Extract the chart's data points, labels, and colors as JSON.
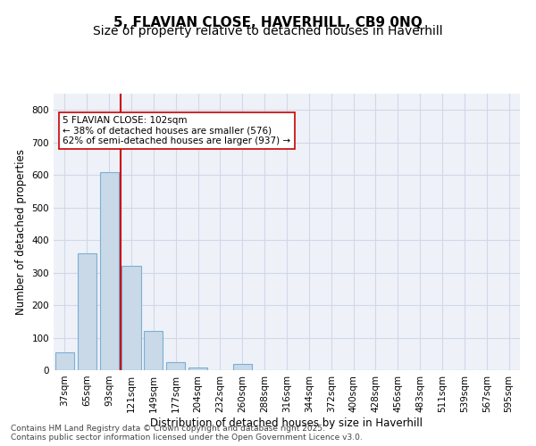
{
  "title_line1": "5, FLAVIAN CLOSE, HAVERHILL, CB9 0NQ",
  "title_line2": "Size of property relative to detached houses in Haverhill",
  "xlabel": "Distribution of detached houses by size in Haverhill",
  "ylabel": "Number of detached properties",
  "categories": [
    "37sqm",
    "65sqm",
    "93sqm",
    "121sqm",
    "149sqm",
    "177sqm",
    "204sqm",
    "232sqm",
    "260sqm",
    "288sqm",
    "316sqm",
    "344sqm",
    "372sqm",
    "400sqm",
    "428sqm",
    "456sqm",
    "483sqm",
    "511sqm",
    "539sqm",
    "567sqm",
    "595sqm"
  ],
  "values": [
    55,
    360,
    610,
    320,
    120,
    25,
    8,
    0,
    18,
    0,
    0,
    0,
    0,
    0,
    0,
    0,
    0,
    0,
    0,
    0,
    0
  ],
  "bar_color": "#c9d9e8",
  "bar_edge_color": "#7bafd4",
  "vline_x": 2,
  "vline_color": "#cc0000",
  "annotation_text": "5 FLAVIAN CLOSE: 102sqm\n← 38% of detached houses are smaller (576)\n62% of semi-detached houses are larger (937) →",
  "annotation_box_color": "#ffffff",
  "annotation_box_edge": "#cc0000",
  "ylim": [
    0,
    850
  ],
  "yticks": [
    0,
    100,
    200,
    300,
    400,
    500,
    600,
    700,
    800
  ],
  "grid_color": "#d0d8e8",
  "background_color": "#eef2f8",
  "footer": "Contains HM Land Registry data © Crown copyright and database right 2025.\nContains public sector information licensed under the Open Government Licence v3.0.",
  "title_fontsize": 11,
  "subtitle_fontsize": 10,
  "label_fontsize": 8.5,
  "tick_fontsize": 7.5,
  "footer_fontsize": 6.5
}
